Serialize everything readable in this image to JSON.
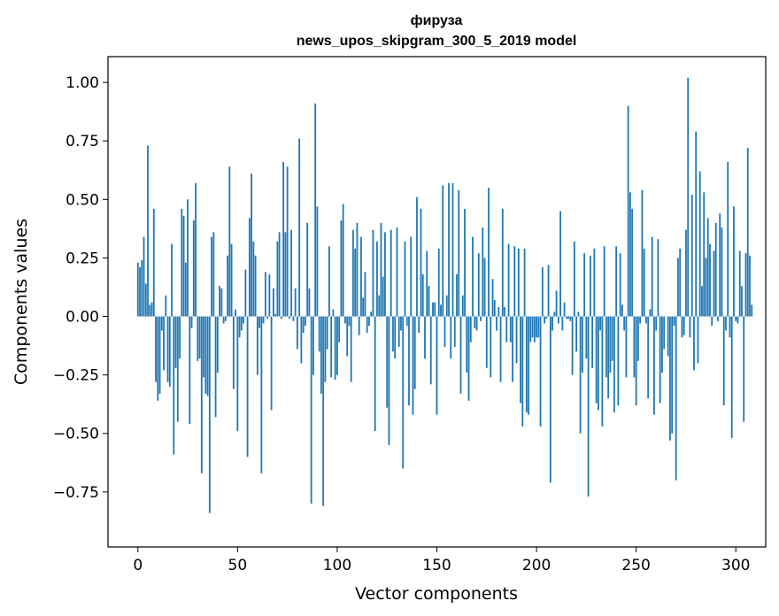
{
  "chart_data": {
    "type": "bar",
    "title": "фируза",
    "subtitle": "news_upos_skipgram_300_5_2019 model",
    "xlabel": "Vector components",
    "ylabel": "Components values",
    "xlim": [
      -15,
      315
    ],
    "ylim": [
      -0.985,
      1.11
    ],
    "xticks": [
      0,
      50,
      100,
      150,
      200,
      250,
      300
    ],
    "xtick_labels": [
      "0",
      "50",
      "100",
      "150",
      "200",
      "250",
      "300"
    ],
    "yticks": [
      1.0,
      0.75,
      0.5,
      0.25,
      0.0,
      -0.25,
      -0.5,
      -0.75
    ],
    "ytick_labels": [
      "1.00",
      "0.75",
      "0.50",
      "0.25",
      "0.00",
      "−0.25",
      "−0.50",
      "−0.75"
    ],
    "bar_color": "#1f77b4",
    "values": [
      0.23,
      0.21,
      0.24,
      0.34,
      0.14,
      0.73,
      0.05,
      0.06,
      0.46,
      -0.28,
      -0.36,
      -0.33,
      -0.06,
      -0.23,
      0.09,
      -0.28,
      -0.3,
      0.31,
      -0.59,
      -0.22,
      -0.45,
      -0.18,
      0.46,
      0.43,
      0.23,
      0.5,
      -0.46,
      -0.05,
      0.41,
      0.57,
      -0.19,
      -0.18,
      -0.67,
      -0.26,
      -0.33,
      -0.34,
      -0.84,
      0.34,
      0.36,
      -0.43,
      -0.24,
      0.13,
      0.12,
      -0.03,
      -0.02,
      0.26,
      0.64,
      0.31,
      -0.31,
      0.03,
      -0.49,
      -0.09,
      -0.06,
      -0.03,
      0.2,
      -0.6,
      0.42,
      0.61,
      0.32,
      0.26,
      -0.25,
      -0.05,
      -0.67,
      -0.03,
      0.19,
      -0.01,
      0.18,
      -0.4,
      0.12,
      0.01,
      0.32,
      0.36,
      -0.01,
      0.66,
      0.36,
      0.64,
      -0.01,
      0.37,
      -0.02,
      0.12,
      -0.14,
      0.76,
      -0.2,
      -0.07,
      -0.04,
      0.4,
      0.12,
      -0.8,
      -0.25,
      0.91,
      0.47,
      -0.15,
      -0.33,
      -0.81,
      -0.28,
      -0.14,
      0.3,
      -0.26,
      0.03,
      -0.27,
      -0.25,
      -0.11,
      0.41,
      0.48,
      -0.03,
      -0.17,
      -0.04,
      -0.28,
      0.37,
      0.29,
      0.4,
      -0.08,
      0.34,
      0.08,
      0.19,
      -0.07,
      -0.04,
      0.02,
      0.37,
      -0.49,
      0.32,
      0.09,
      0.4,
      0.17,
      0.36,
      -0.39,
      -0.55,
      0.37,
      -0.15,
      -0.18,
      0.38,
      -0.13,
      -0.06,
      -0.65,
      0.32,
      -0.04,
      -0.38,
      0.34,
      -0.42,
      -0.31,
      0.51,
      -0.07,
      0.46,
      0.18,
      -0.18,
      0.28,
      0.13,
      -0.29,
      0.06,
      0.06,
      -0.42,
      0.29,
      0.05,
      0.56,
      -0.13,
      0.09,
      0.57,
      -0.18,
      0.57,
      -0.13,
      0.18,
      0.54,
      -0.33,
      0.09,
      0.46,
      -0.24,
      -0.36,
      -0.11,
      0.34,
      -0.05,
      -0.06,
      0.27,
      -0.02,
      0.38,
      0.25,
      -0.22,
      0.55,
      -0.26,
      0.16,
      0.07,
      -0.06,
      0.04,
      -0.28,
      0.46,
      0.04,
      -0.11,
      0.31,
      -0.11,
      -0.28,
      0.3,
      -0.2,
      0.29,
      -0.37,
      -0.47,
      0.29,
      -0.41,
      -0.42,
      -0.11,
      -0.09,
      -0.11,
      -0.09,
      -0.09,
      -0.47,
      0.21,
      -0.03,
      -0.01,
      0.22,
      -0.71,
      -0.06,
      0.02,
      0.11,
      -0.03,
      0.45,
      -0.06,
      0.06,
      -0.01,
      -0.01,
      -0.02,
      -0.25,
      0.32,
      -0.15,
      0.02,
      -0.5,
      -0.24,
      0.27,
      -0.18,
      -0.77,
      0.26,
      -0.22,
      0.29,
      -0.37,
      -0.4,
      -0.06,
      -0.47,
      0.3,
      -0.26,
      -0.35,
      -0.24,
      -0.19,
      -0.41,
      0.3,
      -0.38,
      0.27,
      0.05,
      -0.06,
      -0.26,
      0.9,
      0.53,
      0.46,
      -0.26,
      -0.38,
      -0.19,
      -0.03,
      0.54,
      0.29,
      -0.03,
      -0.35,
      0.03,
      0.34,
      -0.42,
      -0.06,
      0.33,
      -0.37,
      -0.24,
      -0.14,
      0.0,
      -0.17,
      -0.53,
      -0.5,
      -0.04,
      -0.7,
      0.25,
      0.29,
      -0.09,
      -0.08,
      0.37,
      1.02,
      -0.09,
      0.52,
      -0.23,
      0.79,
      -0.2,
      0.62,
      0.13,
      0.53,
      0.25,
      0.42,
      0.31,
      -0.04,
      0.28,
      0.4,
      -0.02,
      0.44,
      0.38,
      -0.38,
      -0.06,
      0.66,
      -0.09,
      -0.52,
      0.47,
      -0.02,
      -0.03,
      0.28,
      0.13,
      -0.45,
      0.27,
      0.72,
      0.26,
      0.05
    ]
  }
}
